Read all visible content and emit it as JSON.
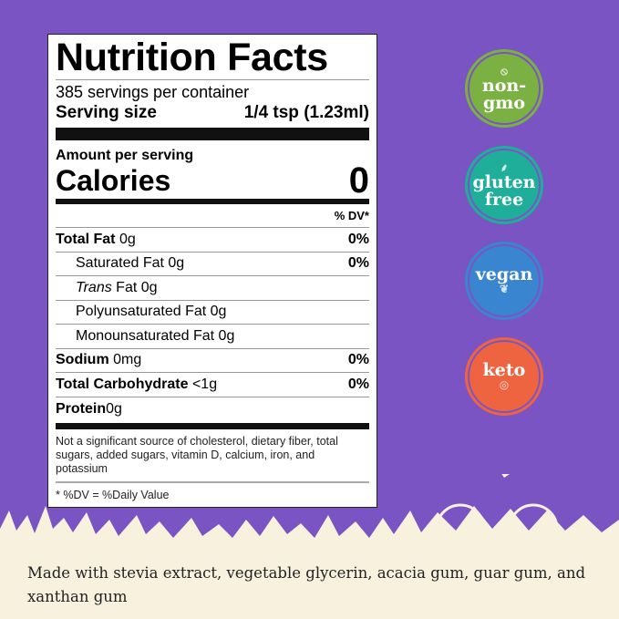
{
  "nutrition": {
    "title": "Nutrition Facts",
    "servings": "385 servings per container",
    "serving_size_label": "Serving size",
    "serving_size_value": "1/4 tsp (1.23ml)",
    "amount_label": "Amount per serving",
    "calories_label": "Calories",
    "calories_value": "0",
    "dv_header": "% DV*",
    "rows": [
      {
        "name": "Total Fat",
        "amount": "0g",
        "dv": "0%"
      },
      {
        "name": "Saturated Fat",
        "amount": "0g",
        "dv": "0%"
      },
      {
        "name": "Trans",
        "name_suffix": "Fat",
        "amount": "0g",
        "dv": ""
      },
      {
        "name": "Polyunsaturated Fat",
        "amount": "0g",
        "dv": ""
      },
      {
        "name": "Monounsaturated Fat",
        "amount": "0g",
        "dv": ""
      },
      {
        "name": "Sodium",
        "amount": "0mg",
        "dv": "0%"
      },
      {
        "name": "Total Carbohydrate",
        "amount": "<1g",
        "dv": "0%"
      },
      {
        "name": "Protein",
        "amount": "0g",
        "dv": ""
      }
    ],
    "note": "Not a significant source of cholesterol, dietary fiber, total sugars, added sugars, vitamin D, calcium, iron, and potassium",
    "footnote": "* %DV = %Daily Value"
  },
  "badges": [
    {
      "line1": "non-",
      "line2": "gmo",
      "icon": "no-gmo-flask-icon",
      "color": "#7bb043"
    },
    {
      "line1": "gluten",
      "line2": "free",
      "icon": "wheat-icon",
      "color": "#1fae9a"
    },
    {
      "line1": "vegan",
      "line2": "",
      "icon": "leaf-icon",
      "color": "#3a85d0"
    },
    {
      "line1": "keto",
      "line2": "",
      "icon": "egg-icon",
      "color": "#ee6440"
    }
  ],
  "ingredients": "Made with stevia extract, vegetable glycerin, acacia gum, guar gum, and xanthan gum",
  "colors": {
    "background": "#7b54c3",
    "ground": "#f7f1de"
  }
}
